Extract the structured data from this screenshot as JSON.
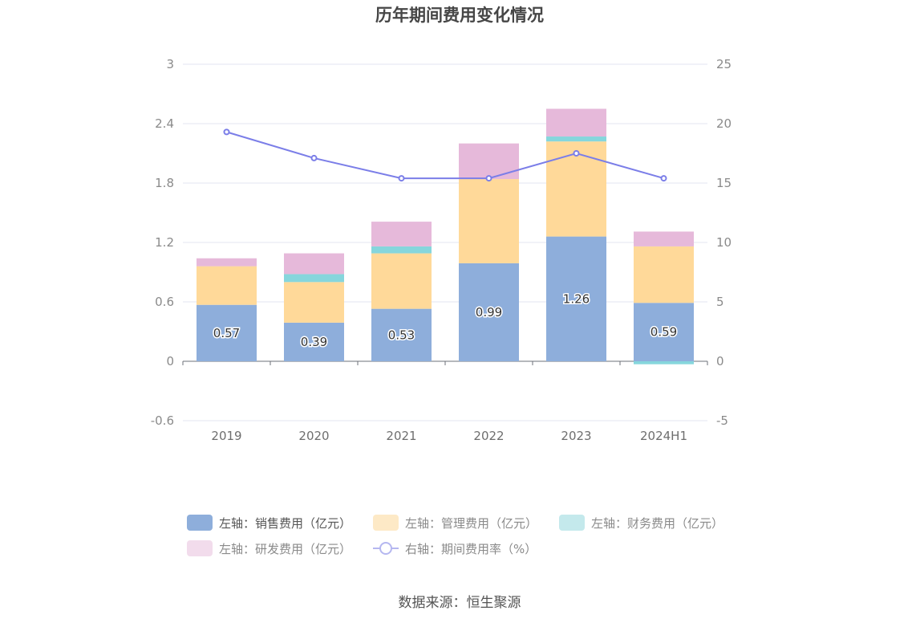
{
  "chart_data": {
    "type": "bar",
    "title": "历年期间费用变化情况",
    "categories": [
      "2019",
      "2020",
      "2021",
      "2022",
      "2023",
      "2024H1"
    ],
    "stacked": true,
    "left_axis": {
      "ticks": [
        "3",
        "2.4",
        "1.8",
        "1.2",
        "0.6",
        "0",
        "-0.6"
      ],
      "ylim": [
        -0.6,
        3
      ]
    },
    "right_axis": {
      "ticks": [
        "25",
        "20",
        "15",
        "10",
        "5",
        "0",
        "-5"
      ],
      "ylim": [
        -5,
        25
      ]
    },
    "series": [
      {
        "name": "左轴：销售费用（亿元）",
        "axis": "left",
        "type": "bar",
        "color": "#8eaedb",
        "values": [
          0.57,
          0.39,
          0.53,
          0.99,
          1.26,
          0.59
        ],
        "labels": [
          "0.57",
          "0.39",
          "0.53",
          "0.99",
          "1.26",
          "0.59"
        ]
      },
      {
        "name": "左轴：管理费用（亿元）",
        "axis": "left",
        "type": "bar",
        "color": "#ffd999",
        "values": [
          0.39,
          0.41,
          0.56,
          0.85,
          0.96,
          0.57
        ]
      },
      {
        "name": "左轴：财务费用（亿元）",
        "axis": "left",
        "type": "bar",
        "color": "#86d6dc",
        "values": [
          0.0,
          0.08,
          0.07,
          0.0,
          0.05,
          -0.03
        ]
      },
      {
        "name": "左轴：研发费用（亿元）",
        "axis": "left",
        "type": "bar",
        "color": "#e6b9da",
        "values": [
          0.08,
          0.21,
          0.25,
          0.36,
          0.28,
          0.15
        ]
      },
      {
        "name": "右轴：期间费用率（%）",
        "axis": "right",
        "type": "line",
        "color": "#7b7ee8",
        "values": [
          19.3,
          17.1,
          15.4,
          15.4,
          17.5,
          15.4
        ]
      }
    ],
    "legend_position": "bottom",
    "grid": true
  },
  "legend": {
    "items": [
      {
        "label": "左轴：销售费用（亿元）",
        "swatch": "rect",
        "color": "#8eaedb",
        "active": true
      },
      {
        "label": "左轴：管理费用（亿元）",
        "swatch": "rect",
        "color": "#fde9c6",
        "active": false
      },
      {
        "label": "左轴：财务费用（亿元）",
        "swatch": "rect",
        "color": "#c4e9ec",
        "active": false
      },
      {
        "label": "左轴：研发费用（亿元）",
        "swatch": "rect",
        "color": "#f2dcec",
        "active": false
      },
      {
        "label": "右轴：期间费用率（%）",
        "swatch": "line",
        "color": "#b5b7f0",
        "active": false
      }
    ]
  },
  "source": "数据来源：恒生聚源"
}
